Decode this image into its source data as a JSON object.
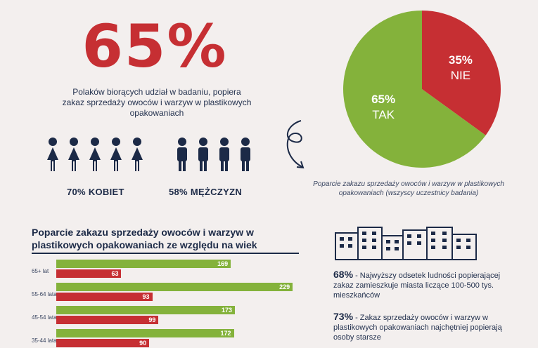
{
  "headline": {
    "percent": "65%",
    "description": "Polaków biorących udział w badaniu, popiera zakaz sprzedaży owoców i warzyw w plastikowych opakowaniach"
  },
  "gender": {
    "women_label": "70% KOBIET",
    "men_label": "58% MĘŻCZYZN",
    "women_value": 70,
    "men_value": 58
  },
  "pie": {
    "caption": "Poparcie zakazu sprzedaży owoców i warzyw w plastikowych opakowaniach (wszyscy uczestnicy badania)",
    "slices": [
      {
        "pct": "65%",
        "label": "TAK",
        "value": 65,
        "color": "#84b23b"
      },
      {
        "pct": "35%",
        "label": "NIE",
        "value": 35,
        "color": "#c62f33"
      }
    ]
  },
  "age_chart": {
    "title": "Poparcie zakazu sprzedaży owoców i warzyw w plastikowych opakowaniach ze względu na wiek"
  },
  "facts": {
    "fact1_pct": "68%",
    "fact1_text": " - Najwyższy odsetek ludności popierającej zakaz zamieszkuje miasta liczące 100-500 tys. mieszkańców",
    "fact2_pct": "73%",
    "fact2_text": " - Zakaz sprzedaży owoców i warzyw w plastikowych opakowaniach najchętniej popierają osoby starsze"
  },
  "colors": {
    "green": "#84b23b",
    "red": "#c62f33",
    "navy": "#1c2a47"
  },
  "chart_data": [
    {
      "type": "pie",
      "title": "Poparcie zakazu sprzedaży owoców i warzyw w plastikowych opakowaniach (wszyscy uczestnicy badania)",
      "categories": [
        "TAK",
        "NIE"
      ],
      "values": [
        65,
        35
      ]
    },
    {
      "type": "bar",
      "orientation": "horizontal",
      "title": "Poparcie zakazu sprzedaży owoców i warzyw w plastikowych opakowaniach ze względu na wiek",
      "categories": [
        "65+ lat",
        "55-64 lata",
        "45-54 lata",
        "35-44 lata"
      ],
      "series": [
        {
          "color": "#84b23b",
          "values": [
            169,
            229,
            173,
            172
          ]
        },
        {
          "color": "#c62f33",
          "values": [
            63,
            93,
            99,
            90
          ]
        }
      ],
      "xlim": [
        0,
        235
      ]
    }
  ]
}
